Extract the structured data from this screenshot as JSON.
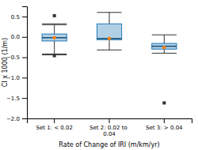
{
  "chart_data": {
    "type": "box",
    "xlabel": "Rate of Change of IRI (m/km/yr)",
    "ylabel": "CI x 1000 (1/m)",
    "categories": [
      "Set 1: < 0.02",
      "Set 2: 0.02 to 0.04",
      "Set 3: > 0.04"
    ],
    "boxes": [
      {
        "q1": -0.1,
        "median": -0.02,
        "q3": 0.07,
        "mean": -0.02,
        "whislo": -0.42,
        "whishi": 0.3,
        "extra_lines": [
          0.32,
          -0.44
        ],
        "fliers": [
          0.52,
          -0.46
        ]
      },
      {
        "q1": -0.07,
        "median": -0.04,
        "q3": 0.32,
        "mean": -0.04,
        "whislo": -0.32,
        "whishi": 0.6,
        "extra_lines": [],
        "fliers": []
      },
      {
        "q1": -0.3,
        "median": -0.23,
        "q3": -0.16,
        "mean": -0.26,
        "whislo": -0.4,
        "whishi": 0.05,
        "extra_lines": [],
        "fliers": [
          -1.62
        ]
      }
    ],
    "ylim": [
      -2.0,
      0.75
    ],
    "yticks": [
      {
        "value": -2.0,
        "label": "−2.0"
      },
      {
        "value": -1.5,
        "label": "−1.5"
      },
      {
        "value": -1.0,
        "label": "−1.0"
      },
      {
        "value": -0.5,
        "label": "−0.5"
      },
      {
        "value": 0.0,
        "label": "0.0"
      },
      {
        "value": 0.5,
        "label": "0.5"
      }
    ],
    "grid": false
  }
}
